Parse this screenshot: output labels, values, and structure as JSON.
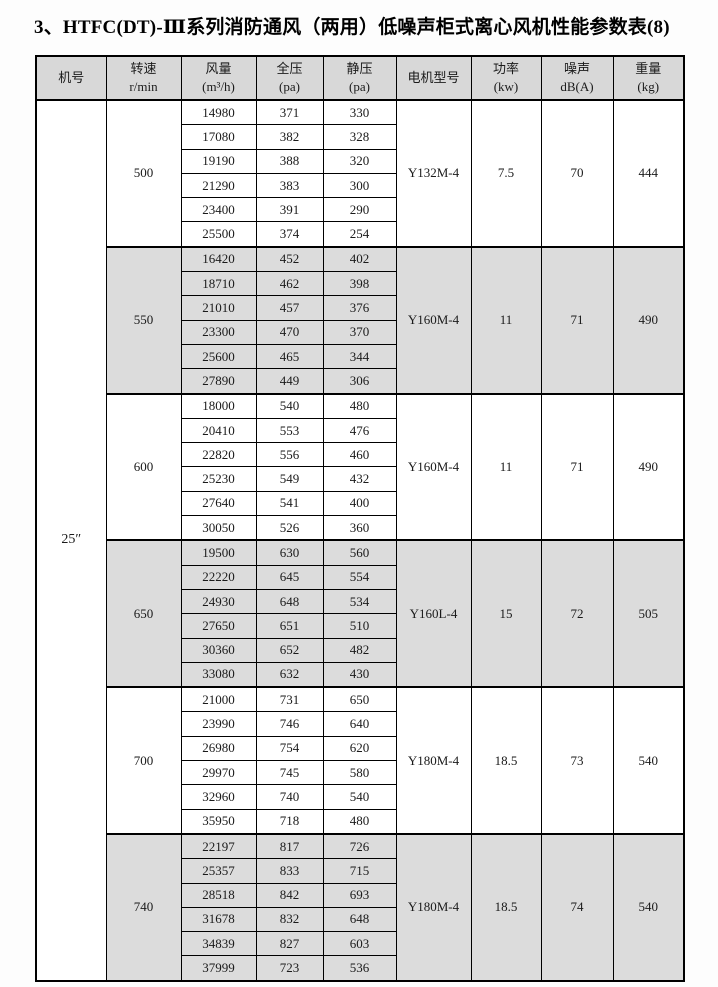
{
  "page": {
    "title": "3、HTFC(DT)-Ⅲ系列消防通风（两用）低噪声柜式离心风机性能参数表(8)"
  },
  "table": {
    "columns": [
      {
        "label": "机号",
        "unit": ""
      },
      {
        "label": "转速",
        "unit": "r/min"
      },
      {
        "label": "风量",
        "unit": "(m³/h)"
      },
      {
        "label": "全压",
        "unit": "(pa)"
      },
      {
        "label": "静压",
        "unit": "(pa)"
      },
      {
        "label": "电机型号",
        "unit": ""
      },
      {
        "label": "功率",
        "unit": "(kw)"
      },
      {
        "label": "噪声",
        "unit": "dB(A)"
      },
      {
        "label": "重量",
        "unit": "(kg)"
      }
    ],
    "fan_size": "25″",
    "groups": [
      {
        "speed": "500",
        "motor": "Y132M-4",
        "power": "7.5",
        "noise": "70",
        "weight": "444",
        "shaded": false,
        "rows": [
          [
            14980,
            371,
            330
          ],
          [
            17080,
            382,
            328
          ],
          [
            19190,
            388,
            320
          ],
          [
            21290,
            383,
            300
          ],
          [
            23400,
            391,
            290
          ],
          [
            25500,
            374,
            254
          ]
        ]
      },
      {
        "speed": "550",
        "motor": "Y160M-4",
        "power": "11",
        "noise": "71",
        "weight": "490",
        "shaded": true,
        "rows": [
          [
            16420,
            452,
            402
          ],
          [
            18710,
            462,
            398
          ],
          [
            21010,
            457,
            376
          ],
          [
            23300,
            470,
            370
          ],
          [
            25600,
            465,
            344
          ],
          [
            27890,
            449,
            306
          ]
        ]
      },
      {
        "speed": "600",
        "motor": "Y160M-4",
        "power": "11",
        "noise": "71",
        "weight": "490",
        "shaded": false,
        "rows": [
          [
            18000,
            540,
            480
          ],
          [
            20410,
            553,
            476
          ],
          [
            22820,
            556,
            460
          ],
          [
            25230,
            549,
            432
          ],
          [
            27640,
            541,
            400
          ],
          [
            30050,
            526,
            360
          ]
        ]
      },
      {
        "speed": "650",
        "motor": "Y160L-4",
        "power": "15",
        "noise": "72",
        "weight": "505",
        "shaded": true,
        "rows": [
          [
            19500,
            630,
            560
          ],
          [
            22220,
            645,
            554
          ],
          [
            24930,
            648,
            534
          ],
          [
            27650,
            651,
            510
          ],
          [
            30360,
            652,
            482
          ],
          [
            33080,
            632,
            430
          ]
        ]
      },
      {
        "speed": "700",
        "motor": "Y180M-4",
        "power": "18.5",
        "noise": "73",
        "weight": "540",
        "shaded": false,
        "rows": [
          [
            21000,
            731,
            650
          ],
          [
            23990,
            746,
            640
          ],
          [
            26980,
            754,
            620
          ],
          [
            29970,
            745,
            580
          ],
          [
            32960,
            740,
            540
          ],
          [
            35950,
            718,
            480
          ]
        ]
      },
      {
        "speed": "740",
        "motor": "Y180M-4",
        "power": "18.5",
        "noise": "74",
        "weight": "540",
        "shaded": true,
        "rows": [
          [
            22197,
            817,
            726
          ],
          [
            25357,
            833,
            715
          ],
          [
            28518,
            842,
            693
          ],
          [
            31678,
            832,
            648
          ],
          [
            34839,
            827,
            603
          ],
          [
            37999,
            723,
            536
          ]
        ]
      }
    ]
  },
  "colors": {
    "header_bg": "#d8d8d8",
    "shaded_group_bg": "#dcdcdc",
    "border": "#000000",
    "page_bg": "#fdfdfd"
  }
}
